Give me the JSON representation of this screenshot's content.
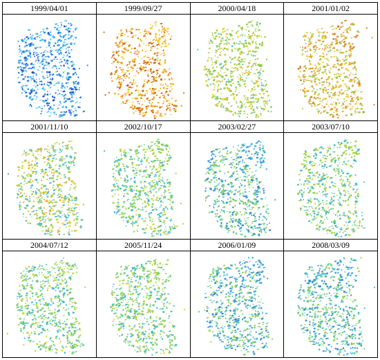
{
  "panels": [
    {
      "date": "1999/04/01",
      "palette": "blue"
    },
    {
      "date": "1999/09/27",
      "palette": "orange"
    },
    {
      "date": "2000/04/18",
      "palette": "yellowgreen"
    },
    {
      "date": "2001/01/02",
      "palette": "orange2"
    },
    {
      "date": "2001/11/10",
      "palette": "mixed"
    },
    {
      "date": "2002/10/17",
      "palette": "green"
    },
    {
      "date": "2003/02/27",
      "palette": "cyan"
    },
    {
      "date": "2003/07/10",
      "palette": "green"
    },
    {
      "date": "2004/07/12",
      "palette": "green"
    },
    {
      "date": "2005/11/24",
      "palette": "green"
    },
    {
      "date": "2006/01/09",
      "palette": "cyan"
    },
    {
      "date": "2008/03/09",
      "palette": "cyan"
    }
  ],
  "palettes": {
    "blue": [
      "#1f6fd6",
      "#2b8be0",
      "#3aa6ea",
      "#59c2f0",
      "#1a4fc0",
      "#76d3f2"
    ],
    "orange": [
      "#f2a51c",
      "#e98a14",
      "#f5c431",
      "#d9731a",
      "#c8601b",
      "#f0d24a"
    ],
    "yellowgreen": [
      "#b8d13a",
      "#d7d834",
      "#9ccc4a",
      "#e8c12c",
      "#7fc65c",
      "#67c9b0"
    ],
    "orange2": [
      "#e7b52c",
      "#f0c63a",
      "#d9862a",
      "#c9d34a",
      "#8fcb58",
      "#e09b2a"
    ],
    "mixed": [
      "#8fcb58",
      "#b8d13a",
      "#60c6a8",
      "#e9b52e",
      "#49b5d6",
      "#d7d834"
    ],
    "green": [
      "#7fd06a",
      "#5ec79a",
      "#a6d548",
      "#4fb8d2",
      "#3fbfbe",
      "#c6d83e"
    ],
    "cyan": [
      "#4ab7e0",
      "#5fcf9a",
      "#3a9fd8",
      "#7fd06a",
      "#2f86cc",
      "#9ad35a"
    ]
  }
}
